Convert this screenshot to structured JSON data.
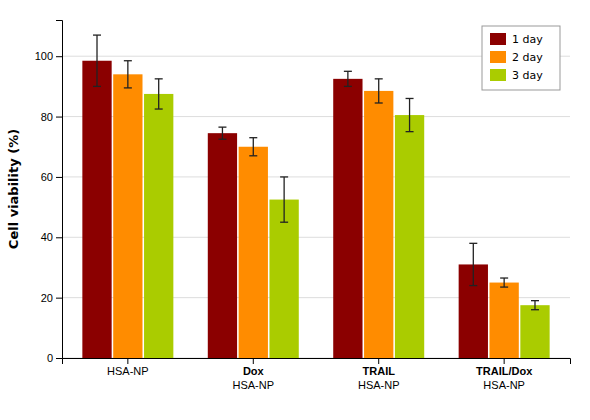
{
  "chart_data": {
    "type": "bar",
    "categories": [
      "HSA-NP",
      "Dox HSA-NP",
      "TRAIL HSA-NP",
      "TRAIL/Dox HSA-NP"
    ],
    "series": [
      {
        "name": "1 day",
        "color": "#8B0000",
        "values": [
          98.5,
          74.5,
          92.5,
          31.0
        ],
        "errors": [
          8.5,
          2.0,
          2.5,
          7.0
        ]
      },
      {
        "name": "2 day",
        "color": "#FF8C00",
        "values": [
          94.0,
          70.0,
          88.5,
          25.0
        ],
        "errors": [
          4.5,
          3.0,
          4.0,
          1.5
        ]
      },
      {
        "name": "3 day",
        "color": "#AACC00",
        "values": [
          87.5,
          52.5,
          80.5,
          17.5
        ],
        "errors": [
          5.0,
          7.5,
          5.5,
          1.5
        ]
      }
    ],
    "ylabel": "Cell viability (%)",
    "ylim": [
      0,
      112
    ],
    "yticks": [
      0,
      20,
      40,
      60,
      80,
      100
    ],
    "grid": true,
    "legend": "upper right"
  }
}
